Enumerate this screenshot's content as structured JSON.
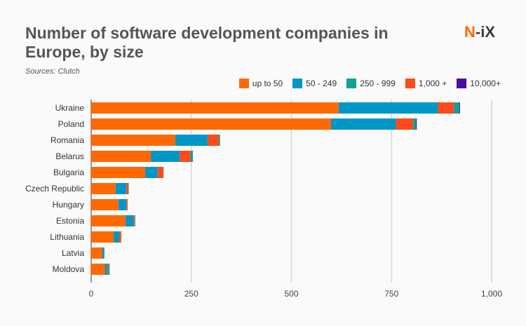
{
  "title": "Number of software development companies in Europe, by size",
  "source": "Sources: Clutch",
  "logo": {
    "part1": "N",
    "part2": "-iX"
  },
  "chart_data": {
    "type": "bar",
    "orientation": "horizontal",
    "stacked": true,
    "title": "Number of software development companies in Europe, by size",
    "categories": [
      "Ukraine",
      "Poland",
      "Romania",
      "Belarus",
      "Bulgaria",
      "Czech Republic",
      "Hungary",
      "Estonia",
      "Lithuania",
      "Latvia",
      "Moldova"
    ],
    "series": [
      {
        "name": "up to 50",
        "color": "#ff6a00",
        "values": [
          618,
          599,
          210,
          149,
          135,
          61,
          68,
          86,
          56,
          28,
          34
        ]
      },
      {
        "name": "50 - 249",
        "color": "#0096c7",
        "values": [
          248,
          162,
          81,
          72,
          31,
          27,
          20,
          19,
          14,
          5,
          6
        ]
      },
      {
        "name": "250 - 999",
        "color": "#0fa396",
        "values": [
          13,
          7,
          3,
          6,
          1,
          1,
          0,
          2,
          0,
          0,
          3
        ]
      },
      {
        "name": "1,000 +",
        "color": "#ff4b1a",
        "values": [
          40,
          43,
          28,
          27,
          14,
          5,
          3,
          3,
          5,
          0,
          3
        ]
      },
      {
        "name": "10,000+",
        "color": "#4b0fa0",
        "values": [
          2,
          2,
          0,
          0,
          0,
          0,
          0,
          0,
          0,
          0,
          0
        ]
      }
    ],
    "stack_order": [
      "up to 50",
      "50 - 249",
      "1,000 +",
      "250 - 999",
      "10,000+"
    ],
    "xlim": [
      0,
      1000
    ],
    "xticks": [
      "0",
      "250",
      "500",
      "750",
      "1,000"
    ],
    "grid": true,
    "legend": "top-right"
  }
}
